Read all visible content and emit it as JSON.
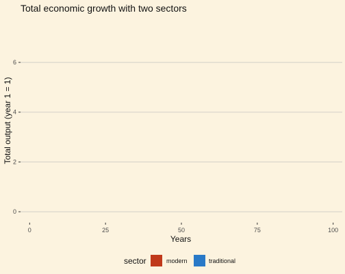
{
  "chart_data": {
    "type": "area",
    "title": "Total economic growth with two sectors",
    "xlabel": "Years",
    "ylabel": "Total output (year 1 = 1)",
    "xlim": [
      -3,
      103
    ],
    "ylim": [
      -0.3,
      6.8
    ],
    "x_ticks": [
      0,
      25,
      50,
      75,
      100
    ],
    "y_ticks": [
      0,
      2,
      4,
      6
    ],
    "grid": true,
    "legend_position": "bottom",
    "legend_title": "sector",
    "series": [
      {
        "name": "modern",
        "color": "#c0391b",
        "values": []
      },
      {
        "name": "traditional",
        "color": "#2979c7",
        "values": []
      }
    ]
  }
}
